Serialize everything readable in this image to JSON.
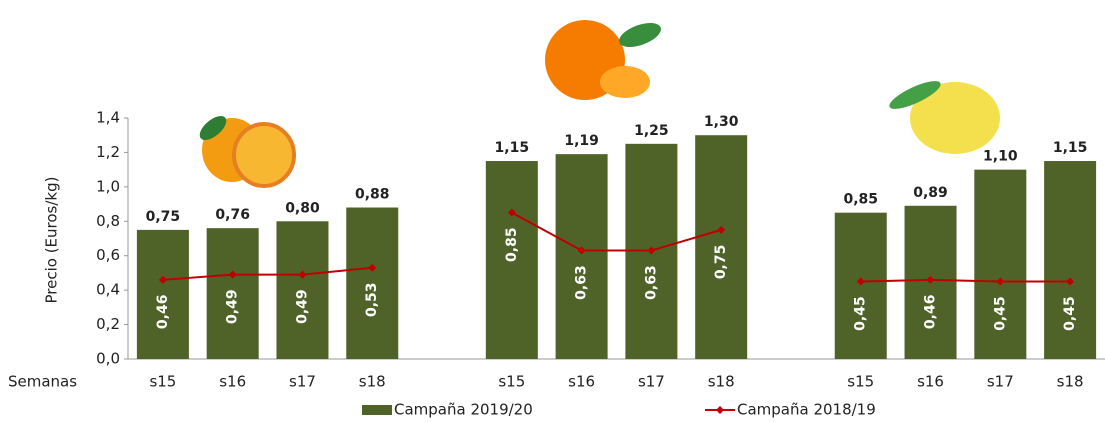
{
  "chart_data": {
    "type": "bar",
    "x_label": "Semanas",
    "y_label": "Precio (Euros/kg)",
    "categories": [
      "s15",
      "s16",
      "s17",
      "s18",
      null,
      "s15",
      "s16",
      "s17",
      "s18",
      null,
      "s15",
      "s16",
      "s17",
      "s18"
    ],
    "series": [
      {
        "name": "Campaña 2019/20",
        "type": "bar",
        "color": "#4f6228",
        "values": [
          0.75,
          0.76,
          0.8,
          0.88,
          null,
          1.15,
          1.19,
          1.25,
          1.3,
          null,
          0.85,
          0.89,
          1.1,
          1.15
        ],
        "value_labels": [
          "0,75",
          "0,76",
          "0,80",
          "0,88",
          null,
          "1,15",
          "1,19",
          "1,25",
          "1,30",
          null,
          "0,85",
          "0,89",
          "1,10",
          "1,15"
        ]
      },
      {
        "name": "Campaña 2018/19",
        "type": "line",
        "color": "#c00000",
        "values": [
          0.46,
          0.49,
          0.49,
          0.53,
          null,
          0.85,
          0.63,
          0.63,
          0.75,
          null,
          0.45,
          0.46,
          0.45,
          0.45
        ],
        "value_labels": [
          "0,46",
          "0,49",
          "0,49",
          "0,53",
          null,
          "0,85",
          "0,63",
          "0,63",
          "0,75",
          null,
          "0,45",
          "0,46",
          "0,45",
          "0,45"
        ]
      }
    ],
    "ylim": [
      0,
      1.4
    ],
    "yticks": [
      {
        "value": 0,
        "label": "0,0"
      },
      {
        "value": 0.2,
        "label": "0,2"
      },
      {
        "value": 0.4,
        "label": "0,4"
      },
      {
        "value": 0.6,
        "label": "0,6"
      },
      {
        "value": 0.8,
        "label": "0,8"
      },
      {
        "value": 1.0,
        "label": "1,0"
      },
      {
        "value": 1.2,
        "label": "1,2"
      },
      {
        "value": 1.4,
        "label": "1,4"
      }
    ],
    "grid": false,
    "legend": "bottom"
  }
}
